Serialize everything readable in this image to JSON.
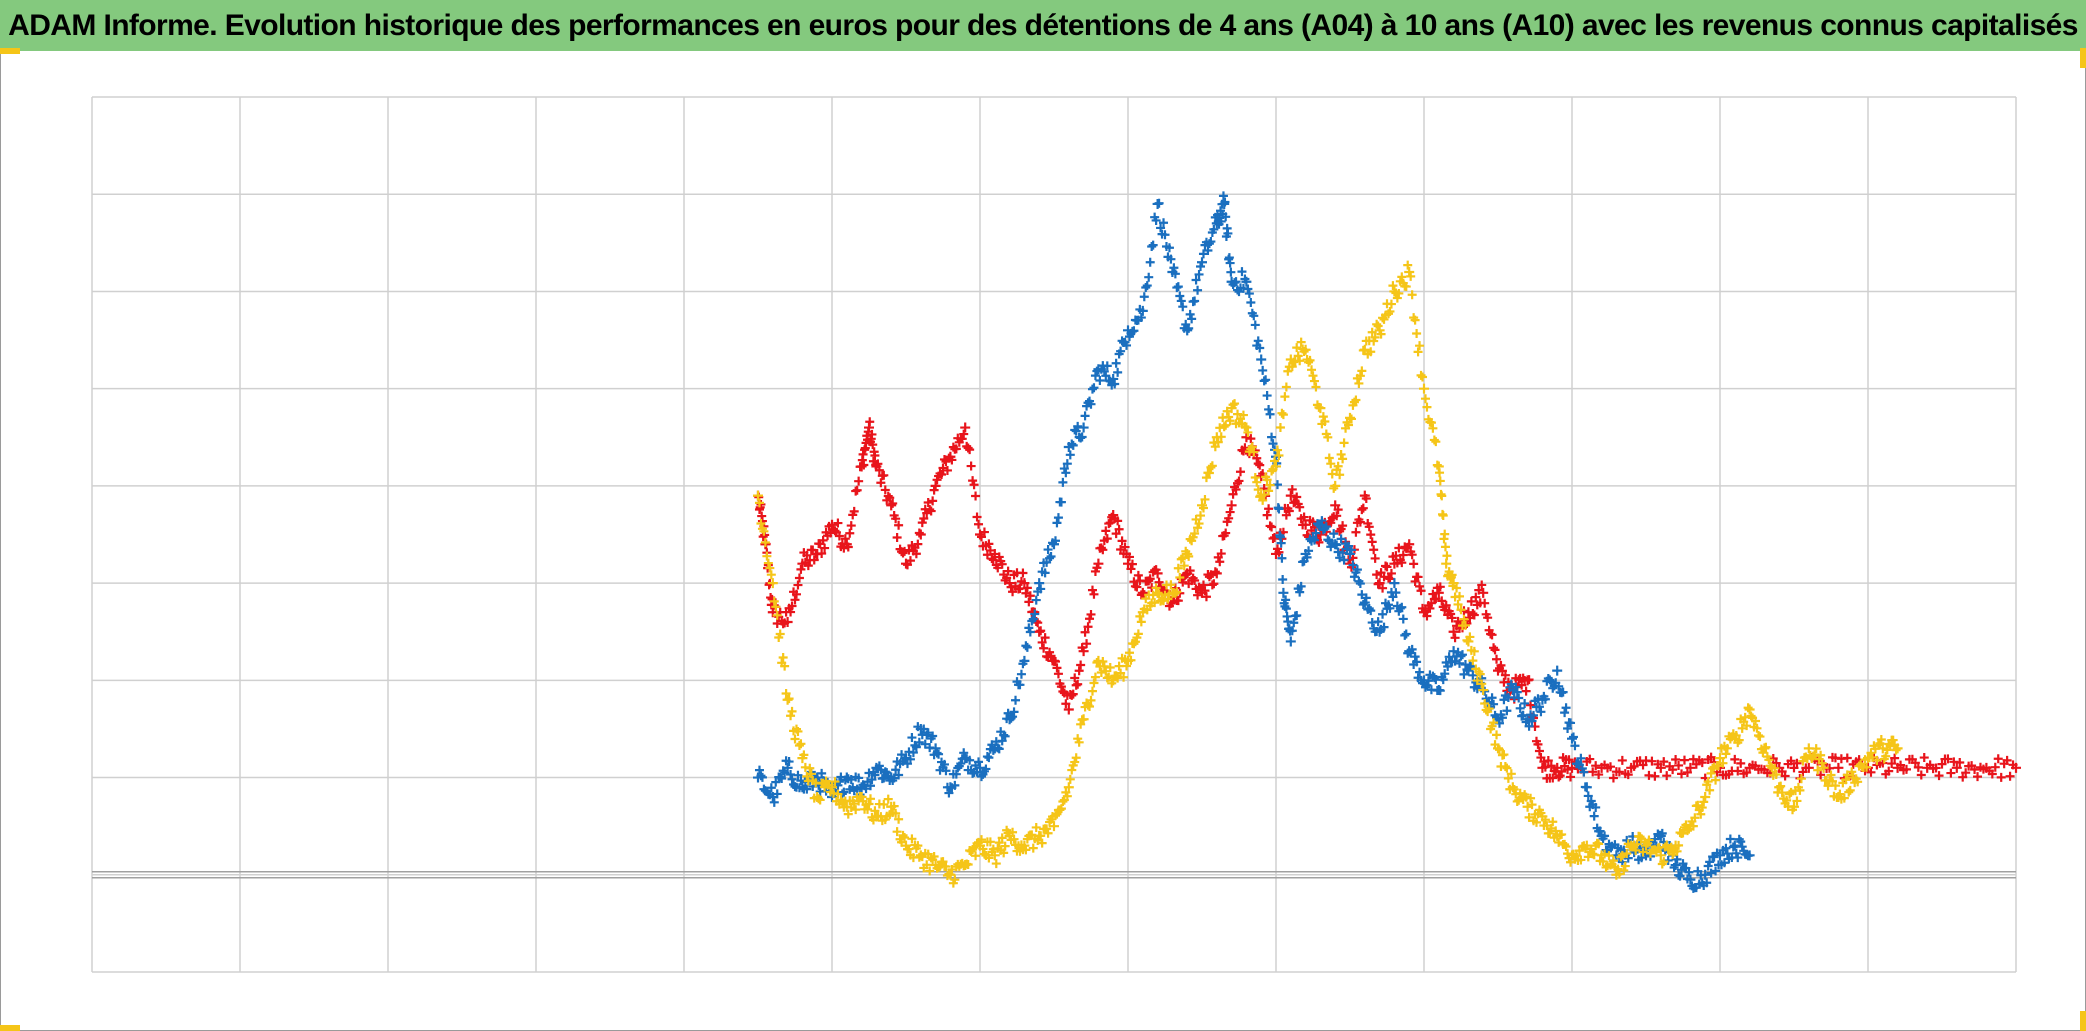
{
  "title": "ADAM Informe. Evolution historique des performances en euros pour des détentions de 4 ans (A04) à 10 ans (A10) avec les revenus connus capitalisés",
  "colors": {
    "title_bg": "#84c97e",
    "grid": "#d0d0d0",
    "axis": "#a0a0a0",
    "corner": "#f5c518",
    "series_red": "#e8141b",
    "series_blue": "#1a6fbf",
    "series_yellow": "#f5c518"
  },
  "chart_data": {
    "type": "scatter",
    "title": "ADAM Informe. Evolution historique des performances en euros pour des détentions de 4 ans (A04) à 10 ans (A10) avec les revenus connus capitalisés",
    "xlabel": "",
    "ylabel": "",
    "xlim": [
      0,
      13
    ],
    "ylim": [
      -1,
      8
    ],
    "baseline_y": 0,
    "grid": true,
    "legend": "none",
    "marker": "plus",
    "series": [
      {
        "color": "#e8141b",
        "points": [
          [
            4.5,
            3.9
          ],
          [
            4.55,
            3.4
          ],
          [
            4.6,
            2.7
          ],
          [
            4.7,
            2.6
          ],
          [
            4.8,
            3.2
          ],
          [
            4.9,
            3.3
          ],
          [
            5.0,
            3.6
          ],
          [
            5.1,
            3.4
          ],
          [
            5.2,
            4.2
          ],
          [
            5.25,
            4.6
          ],
          [
            5.3,
            4.2
          ],
          [
            5.4,
            3.8
          ],
          [
            5.5,
            3.2
          ],
          [
            5.6,
            3.5
          ],
          [
            5.7,
            4.0
          ],
          [
            5.8,
            4.3
          ],
          [
            5.9,
            4.6
          ],
          [
            6.0,
            3.5
          ],
          [
            6.1,
            3.3
          ],
          [
            6.2,
            3.0
          ],
          [
            6.3,
            3.0
          ],
          [
            6.4,
            2.5
          ],
          [
            6.5,
            2.2
          ],
          [
            6.6,
            1.7
          ],
          [
            6.7,
            2.3
          ],
          [
            6.8,
            3.2
          ],
          [
            6.9,
            3.7
          ],
          [
            7.0,
            3.2
          ],
          [
            7.1,
            2.9
          ],
          [
            7.2,
            3.1
          ],
          [
            7.3,
            2.8
          ],
          [
            7.4,
            3.1
          ],
          [
            7.5,
            2.9
          ],
          [
            7.6,
            3.1
          ],
          [
            7.7,
            3.8
          ],
          [
            7.8,
            4.5
          ],
          [
            7.9,
            4.1
          ],
          [
            8.0,
            3.3
          ],
          [
            8.1,
            3.9
          ],
          [
            8.2,
            3.6
          ],
          [
            8.3,
            3.5
          ],
          [
            8.4,
            3.8
          ],
          [
            8.5,
            3.2
          ],
          [
            8.6,
            3.9
          ],
          [
            8.7,
            3.0
          ],
          [
            8.8,
            3.2
          ],
          [
            8.9,
            3.4
          ],
          [
            9.0,
            2.7
          ],
          [
            9.1,
            2.9
          ],
          [
            9.2,
            2.5
          ],
          [
            9.3,
            2.7
          ],
          [
            9.4,
            2.9
          ],
          [
            9.5,
            2.1
          ],
          [
            9.6,
            1.9
          ],
          [
            9.7,
            2.0
          ],
          [
            9.8,
            1.1
          ],
          [
            9.9,
            1.1
          ],
          [
            10.0,
            1.1
          ],
          [
            10.2,
            1.1
          ],
          [
            10.4,
            1.1
          ],
          [
            10.6,
            1.1
          ],
          [
            10.8,
            1.1
          ],
          [
            11.0,
            1.1
          ],
          [
            11.2,
            1.1
          ],
          [
            11.4,
            1.1
          ],
          [
            11.6,
            1.1
          ],
          [
            11.8,
            1.1
          ],
          [
            12.0,
            1.1
          ],
          [
            12.2,
            1.1
          ],
          [
            12.4,
            1.1
          ],
          [
            12.6,
            1.1
          ],
          [
            12.8,
            1.1
          ],
          [
            13.0,
            1.1
          ]
        ]
      },
      {
        "color": "#1a6fbf",
        "points": [
          [
            4.5,
            1.0
          ],
          [
            4.6,
            0.8
          ],
          [
            4.7,
            1.1
          ],
          [
            4.8,
            0.9
          ],
          [
            4.9,
            1.0
          ],
          [
            5.0,
            0.8
          ],
          [
            5.1,
            1.0
          ],
          [
            5.2,
            0.9
          ],
          [
            5.3,
            1.1
          ],
          [
            5.4,
            1.0
          ],
          [
            5.5,
            1.2
          ],
          [
            5.6,
            1.5
          ],
          [
            5.7,
            1.3
          ],
          [
            5.8,
            0.9
          ],
          [
            5.9,
            1.2
          ],
          [
            6.0,
            1.1
          ],
          [
            6.1,
            1.3
          ],
          [
            6.2,
            1.6
          ],
          [
            6.3,
            2.2
          ],
          [
            6.4,
            3.0
          ],
          [
            6.5,
            3.4
          ],
          [
            6.6,
            4.4
          ],
          [
            6.7,
            4.6
          ],
          [
            6.8,
            5.2
          ],
          [
            6.9,
            5.1
          ],
          [
            7.0,
            5.6
          ],
          [
            7.1,
            5.8
          ],
          [
            7.2,
            6.9
          ],
          [
            7.3,
            6.2
          ],
          [
            7.4,
            5.6
          ],
          [
            7.5,
            6.3
          ],
          [
            7.6,
            6.7
          ],
          [
            7.65,
            6.9
          ],
          [
            7.7,
            6.1
          ],
          [
            7.8,
            6.1
          ],
          [
            7.9,
            5.3
          ],
          [
            8.0,
            4.3
          ],
          [
            8.05,
            2.9
          ],
          [
            8.1,
            2.4
          ],
          [
            8.2,
            3.3
          ],
          [
            8.3,
            3.6
          ],
          [
            8.4,
            3.4
          ],
          [
            8.5,
            3.3
          ],
          [
            8.6,
            2.8
          ],
          [
            8.7,
            2.5
          ],
          [
            8.8,
            3.0
          ],
          [
            8.9,
            2.3
          ],
          [
            9.0,
            2.0
          ],
          [
            9.1,
            1.9
          ],
          [
            9.2,
            2.3
          ],
          [
            9.3,
            2.1
          ],
          [
            9.4,
            1.9
          ],
          [
            9.5,
            1.6
          ],
          [
            9.6,
            1.9
          ],
          [
            9.7,
            1.6
          ],
          [
            9.8,
            1.8
          ],
          [
            9.9,
            2.1
          ],
          [
            10.0,
            1.4
          ],
          [
            10.1,
            0.9
          ],
          [
            10.2,
            0.4
          ],
          [
            10.3,
            0.2
          ],
          [
            10.4,
            0.3
          ],
          [
            10.5,
            0.2
          ],
          [
            10.6,
            0.4
          ],
          [
            10.7,
            0.1
          ],
          [
            10.8,
            -0.05
          ],
          [
            10.9,
            0.0
          ],
          [
            11.0,
            0.2
          ],
          [
            11.1,
            0.3
          ],
          [
            11.2,
            0.2
          ]
        ]
      },
      {
        "color": "#f5c518",
        "points": [
          [
            4.5,
            3.9
          ],
          [
            4.6,
            3.0
          ],
          [
            4.7,
            1.8
          ],
          [
            4.8,
            1.2
          ],
          [
            4.9,
            0.8
          ],
          [
            5.0,
            0.9
          ],
          [
            5.1,
            0.7
          ],
          [
            5.2,
            0.8
          ],
          [
            5.3,
            0.6
          ],
          [
            5.4,
            0.7
          ],
          [
            5.5,
            0.3
          ],
          [
            5.6,
            0.2
          ],
          [
            5.7,
            0.1
          ],
          [
            5.8,
            0.0
          ],
          [
            5.9,
            0.1
          ],
          [
            6.0,
            0.3
          ],
          [
            6.1,
            0.2
          ],
          [
            6.2,
            0.4
          ],
          [
            6.3,
            0.3
          ],
          [
            6.4,
            0.4
          ],
          [
            6.5,
            0.5
          ],
          [
            6.6,
            0.9
          ],
          [
            6.7,
            1.6
          ],
          [
            6.8,
            2.2
          ],
          [
            6.9,
            2.0
          ],
          [
            7.0,
            2.2
          ],
          [
            7.1,
            2.7
          ],
          [
            7.2,
            2.9
          ],
          [
            7.3,
            2.9
          ],
          [
            7.4,
            3.3
          ],
          [
            7.5,
            3.8
          ],
          [
            7.6,
            4.5
          ],
          [
            7.7,
            4.8
          ],
          [
            7.8,
            4.6
          ],
          [
            7.9,
            3.9
          ],
          [
            8.0,
            4.2
          ],
          [
            8.1,
            5.3
          ],
          [
            8.2,
            5.4
          ],
          [
            8.3,
            4.8
          ],
          [
            8.4,
            4.0
          ],
          [
            8.5,
            4.7
          ],
          [
            8.6,
            5.4
          ],
          [
            8.7,
            5.6
          ],
          [
            8.8,
            6.0
          ],
          [
            8.9,
            6.2
          ],
          [
            9.0,
            5.0
          ],
          [
            9.1,
            4.2
          ],
          [
            9.15,
            3.2
          ],
          [
            9.2,
            3.0
          ],
          [
            9.3,
            2.4
          ],
          [
            9.4,
            1.9
          ],
          [
            9.5,
            1.3
          ],
          [
            9.6,
            0.9
          ],
          [
            9.7,
            0.7
          ],
          [
            9.8,
            0.6
          ],
          [
            9.9,
            0.4
          ],
          [
            10.0,
            0.2
          ],
          [
            10.1,
            0.3
          ],
          [
            10.2,
            0.2
          ],
          [
            10.3,
            0.0
          ],
          [
            10.4,
            0.3
          ],
          [
            10.5,
            0.3
          ],
          [
            10.6,
            0.2
          ],
          [
            10.7,
            0.3
          ],
          [
            10.8,
            0.5
          ],
          [
            10.9,
            0.8
          ],
          [
            11.0,
            1.2
          ],
          [
            11.1,
            1.4
          ],
          [
            11.2,
            1.7
          ],
          [
            11.3,
            1.3
          ],
          [
            11.4,
            0.9
          ],
          [
            11.5,
            0.7
          ],
          [
            11.6,
            1.3
          ],
          [
            11.7,
            1.1
          ],
          [
            11.8,
            0.8
          ],
          [
            11.9,
            1.0
          ],
          [
            12.0,
            1.2
          ],
          [
            12.1,
            1.3
          ],
          [
            12.2,
            1.3
          ]
        ]
      }
    ]
  }
}
